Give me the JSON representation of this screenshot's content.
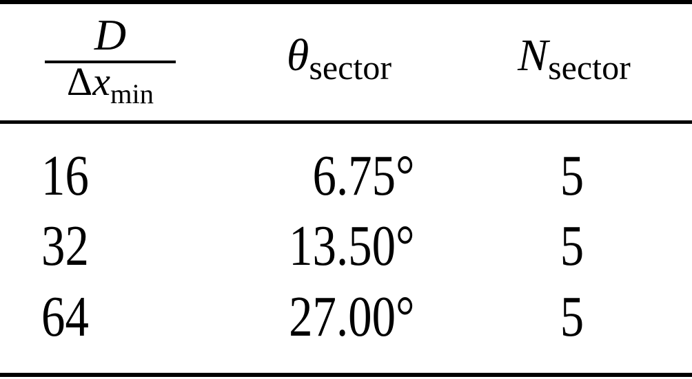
{
  "table": {
    "header": {
      "frac_numerator": "D",
      "frac_den_delta": "Δ",
      "frac_den_var": "x",
      "frac_den_sub": "min",
      "col2_symbol": "θ",
      "col2_sub": "sector",
      "col3_symbol": "N",
      "col3_sub": "sector"
    },
    "rows": [
      {
        "resolution": "16",
        "theta_sector": "6.75°",
        "n_sector": "5"
      },
      {
        "resolution": "32",
        "theta_sector": "13.50°",
        "n_sector": "5"
      },
      {
        "resolution": "64",
        "theta_sector": "27.00°",
        "n_sector": "5"
      }
    ]
  },
  "colors": {
    "background": "#ffffff",
    "text": "#000000",
    "rule": "#000000"
  }
}
